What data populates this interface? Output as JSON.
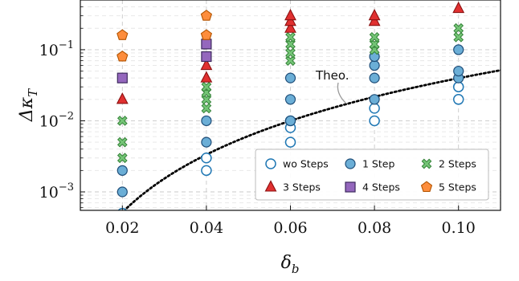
{
  "chart_data": {
    "type": "scatter",
    "title": "",
    "xlabel": "δ_b",
    "ylabel": "Δκ_T",
    "xlim": [
      0.01,
      0.11
    ],
    "ylim": [
      0.00055,
      0.5
    ],
    "yscale": "log",
    "grid": true,
    "legend_position": "lower-right",
    "x_ticks": [
      0.02,
      0.04,
      0.06,
      0.08,
      0.1
    ],
    "x_tick_labels": [
      "0.02",
      "0.04",
      "0.06",
      "0.08",
      "0.10"
    ],
    "y_ticks": [
      0.001,
      0.01,
      0.1
    ],
    "y_tick_labels": [
      {
        "base": "10",
        "exp": "−3"
      },
      {
        "base": "10",
        "exp": "−2"
      },
      {
        "base": "10",
        "exp": "−1"
      }
    ],
    "series": [
      {
        "name": "wo Steps",
        "marker": "circle-open",
        "color": "#1f77b4",
        "points": [
          [
            0.02,
            0.0005
          ],
          [
            0.04,
            0.002
          ],
          [
            0.04,
            0.003
          ],
          [
            0.06,
            0.005
          ],
          [
            0.06,
            0.008
          ],
          [
            0.06,
            0.01
          ],
          [
            0.08,
            0.01
          ],
          [
            0.08,
            0.015
          ],
          [
            0.1,
            0.02
          ],
          [
            0.1,
            0.03
          ]
        ]
      },
      {
        "name": "1 Step",
        "marker": "circle",
        "color": "#6baed6",
        "points": [
          [
            0.02,
            0.001
          ],
          [
            0.02,
            0.002
          ],
          [
            0.04,
            0.005
          ],
          [
            0.04,
            0.01
          ],
          [
            0.06,
            0.01
          ],
          [
            0.06,
            0.02
          ],
          [
            0.06,
            0.04
          ],
          [
            0.08,
            0.02
          ],
          [
            0.08,
            0.04
          ],
          [
            0.08,
            0.06
          ],
          [
            0.08,
            0.08
          ],
          [
            0.1,
            0.04
          ],
          [
            0.1,
            0.05
          ],
          [
            0.1,
            0.1
          ]
        ]
      },
      {
        "name": "2 Steps",
        "marker": "x-filled",
        "color": "#74c476",
        "points": [
          [
            0.02,
            0.003
          ],
          [
            0.02,
            0.005
          ],
          [
            0.02,
            0.01
          ],
          [
            0.04,
            0.015
          ],
          [
            0.04,
            0.02
          ],
          [
            0.04,
            0.025
          ],
          [
            0.04,
            0.03
          ],
          [
            0.06,
            0.07
          ],
          [
            0.06,
            0.09
          ],
          [
            0.06,
            0.12
          ],
          [
            0.06,
            0.15
          ],
          [
            0.08,
            0.1
          ],
          [
            0.08,
            0.12
          ],
          [
            0.08,
            0.15
          ],
          [
            0.1,
            0.15
          ],
          [
            0.1,
            0.2
          ]
        ]
      },
      {
        "name": "3 Steps",
        "marker": "triangle",
        "color": "#e03030",
        "points": [
          [
            0.02,
            0.02
          ],
          [
            0.04,
            0.04
          ],
          [
            0.04,
            0.06
          ],
          [
            0.06,
            0.2
          ],
          [
            0.06,
            0.25
          ],
          [
            0.06,
            0.3
          ],
          [
            0.08,
            0.25
          ],
          [
            0.08,
            0.3
          ],
          [
            0.1,
            0.38
          ]
        ]
      },
      {
        "name": "4 Steps",
        "marker": "square",
        "color": "#9467bd",
        "points": [
          [
            0.02,
            0.04
          ],
          [
            0.04,
            0.08
          ],
          [
            0.04,
            0.12
          ]
        ]
      },
      {
        "name": "5 Steps",
        "marker": "pentagon",
        "color": "#fd8d3c",
        "points": [
          [
            0.02,
            0.08
          ],
          [
            0.02,
            0.16
          ],
          [
            0.04,
            0.16
          ],
          [
            0.04,
            0.3
          ]
        ]
      }
    ],
    "theory_curve": {
      "label": "Theo.",
      "style": "dotted",
      "color": "#000000",
      "exponent": 2.7,
      "ref_x": 0.06,
      "ref_y": 0.01
    }
  }
}
